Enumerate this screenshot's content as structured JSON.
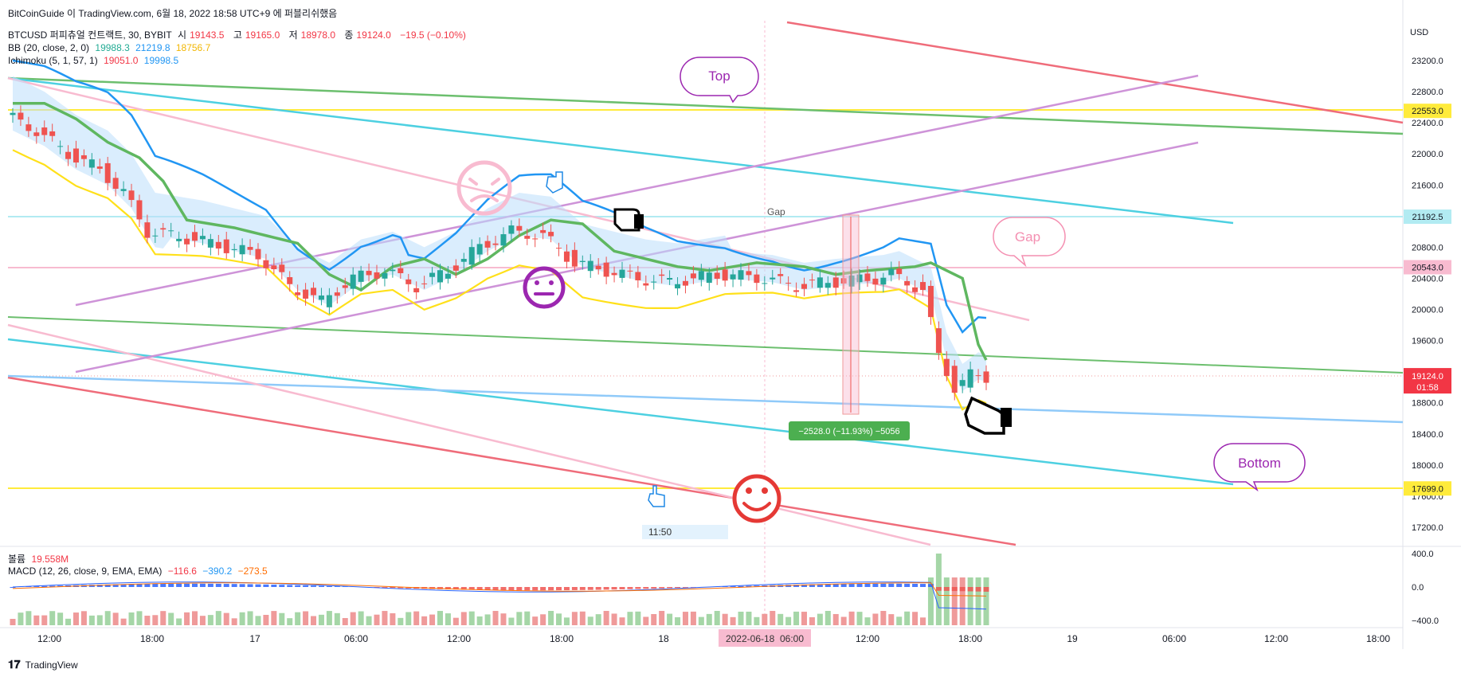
{
  "header": {
    "top_line": "BitCoinGuide 이 TradingView.com, 6월 18, 2022 18:58 UTC+9 에 퍼블리쉬했음",
    "symbol_line": "BTCUSD 퍼피츄얼 컨트랙트, 30, BYBIT",
    "ohlc": {
      "o_label": "시",
      "o": "19143.5",
      "h_label": "고",
      "h": "19165.0",
      "l_label": "저",
      "l": "18978.0",
      "c_label": "종",
      "c": "19124.0",
      "chg": "−19.5 (−0.10%)"
    },
    "bb": {
      "label": "BB (20, close, 2, 0)",
      "v1": "19988.3",
      "v2": "21219.8",
      "v3": "18756.7"
    },
    "ichimoku": {
      "label": "Ichimoku (5, 1, 57, 1)",
      "v1": "19051.0",
      "v2": "19998.5"
    },
    "volume": {
      "label": "볼륨",
      "value": "19.558M"
    },
    "macd": {
      "label": "MACD (12, 26, close, 9, EMA, EMA)",
      "v1": "−116.6",
      "v2": "−390.2",
      "v3": "−273.5"
    }
  },
  "footer": {
    "logo": "TradingView"
  },
  "colors": {
    "up": "#26a69a",
    "down": "#ef5350",
    "bb_mid": "#5fb760",
    "bb_band": "#2196f3",
    "ichimoku": "#ffe01a",
    "purple": "#9c27b0"
  },
  "chart_data": {
    "type": "candlestick",
    "currency": "USD",
    "price_ticks": [
      "23200.0",
      "22800.0",
      "22400.0",
      "22000.0",
      "21600.0",
      "21200.0",
      "20800.0",
      "20400.0",
      "20000.0",
      "19600.0",
      "18800.0",
      "18400.0",
      "18000.0",
      "17600.0",
      "17200.0"
    ],
    "macd_ticks": [
      "400.0",
      "0.0",
      "−400.0"
    ],
    "time_ticks": [
      "12:00",
      "18:00",
      "17",
      "06:00",
      "12:00",
      "18:00",
      "18",
      "12:00",
      "18:00",
      "19",
      "06:00",
      "12:00",
      "18:00"
    ],
    "crosshair_time": "2022-06-18  06:00",
    "price_labels": [
      {
        "text": "22553.0",
        "color": "#ffeb3b",
        "value": 22553
      },
      {
        "text": "21192.5",
        "color": "#b2ebf2",
        "value": 21192.5
      },
      {
        "text": "20543.0",
        "color": "#f8bbd0",
        "value": 20543
      },
      {
        "text": "17699.0",
        "color": "#ffeb3b",
        "value": 17699
      }
    ],
    "last_price": {
      "text": "19124.0",
      "countdown": "01:58",
      "value": 19124
    },
    "annotations": {
      "top": "Top",
      "gap_bubble": "Gap",
      "bottom": "Bottom",
      "gap_text": "Gap",
      "measure": "−2528.0 (−11.93%) −5056",
      "time_box": "11:50"
    }
  }
}
